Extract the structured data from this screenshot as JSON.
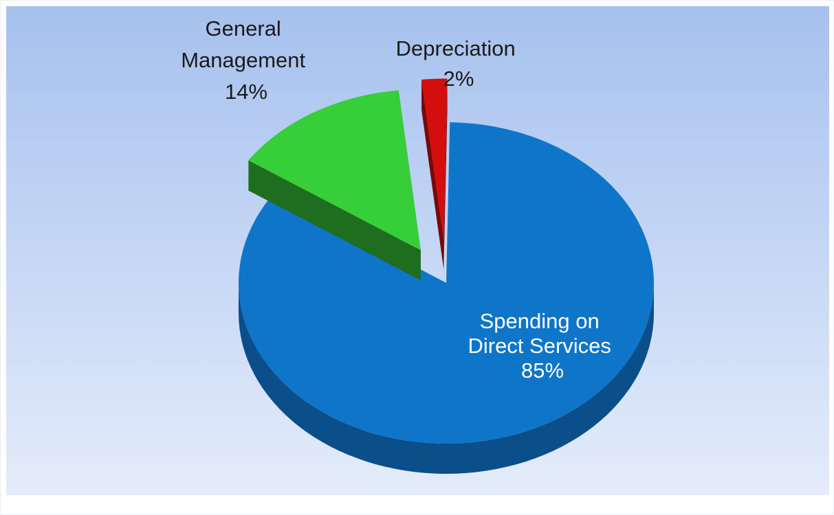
{
  "chart_data": {
    "type": "pie",
    "style": "3d-exploded",
    "title": "",
    "legend": "none",
    "series": [
      {
        "values": [
          85,
          14,
          2
        ],
        "labels": [
          "Spending on Direct Services 85%",
          "General Management 14%",
          "Depreciation 2%"
        ]
      }
    ],
    "slices": [
      {
        "category": "Spending on Direct Services",
        "value": 85,
        "label_lines": [
          "Spending on",
          "Direct Services",
          "85%"
        ],
        "color_top": "#0f75c9",
        "color_side": "#0a4e8a",
        "label_color": "#ffffff",
        "exploded": false
      },
      {
        "category": "General Management",
        "value": 14,
        "label_lines": [
          "General",
          "Management",
          "14%"
        ],
        "color_top": "#36cf3a",
        "color_side": "#1f6d1f",
        "label_color": "#1a1a1a",
        "exploded": true
      },
      {
        "category": "Depreciation",
        "value": 2,
        "label_lines": [
          "Depreciation",
          "2%"
        ],
        "color_top": "#d40d0d",
        "color_side": "#7a0808",
        "label_color": "#1a1a1a",
        "exploded": true
      }
    ],
    "background": {
      "gradient_top": "#a6c1ee",
      "gradient_bottom": "#e4ecfb"
    }
  }
}
